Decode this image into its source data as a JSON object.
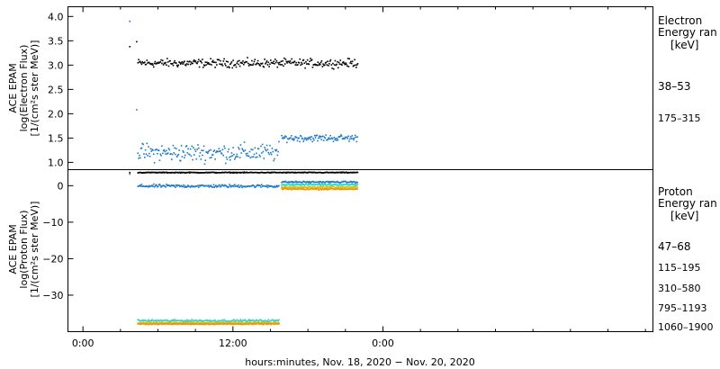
{
  "chart_data": [
    {
      "type": "scatter",
      "panel": "electron",
      "ylabel_lines": [
        "ACE EPAM",
        "log(Electron Flux)",
        "[1/(cm²s ster MeV)]"
      ],
      "ylim": [
        0.85,
        4.2
      ],
      "yticks": [
        1.0,
        1.5,
        2.0,
        2.5,
        3.0,
        3.5,
        4.0
      ],
      "ytick_labels": [
        "1.0",
        "1.5",
        "2.0",
        "2.5",
        "3.0",
        "3.5",
        "4.0"
      ],
      "legend_title_lines": [
        "Electron",
        "Energy ran"
      ],
      "legend_unit": "[keV]",
      "series": [
        {
          "name": "38–53",
          "color": "#000000",
          "outliers": [
            [
              3.75,
              3.38
            ],
            [
              4.3,
              3.48
            ]
          ],
          "segments": [
            [
              4.4,
              22.0,
              3.04,
              0.06
            ]
          ]
        },
        {
          "name": "175–315",
          "color": "#1e78c8",
          "outliers": [
            [
              3.75,
              3.9
            ],
            [
              4.3,
              2.08
            ]
          ],
          "segments": [
            [
              4.4,
              15.7,
              1.2,
              0.13
            ],
            [
              15.9,
              22.0,
              1.5,
              0.05
            ]
          ]
        }
      ]
    },
    {
      "type": "scatter",
      "panel": "proton",
      "ylabel_lines": [
        "ACE EPAM",
        "log(Proton Flux)",
        "[1/(cm²s ster MeV)]"
      ],
      "ylim": [
        -40,
        4.4
      ],
      "yticks": [
        0,
        -10,
        -20,
        -30
      ],
      "ytick_labels": [
        "0",
        "−10",
        "−20",
        "−30"
      ],
      "legend_title_lines": [
        "Proton",
        "Energy ran"
      ],
      "legend_unit": "[keV]",
      "series": [
        {
          "name": "47–68",
          "color": "#000000",
          "outliers": [
            [
              3.75,
              3.6
            ]
          ],
          "segments": [
            [
              4.4,
              22.0,
              3.6,
              0.08
            ]
          ]
        },
        {
          "name": "115–195",
          "color": "#1e78c8",
          "outliers": [
            [
              3.75,
              3.2
            ]
          ],
          "segments": [
            [
              4.4,
              15.7,
              -0.1,
              0.3
            ],
            [
              15.9,
              22.0,
              1.0,
              0.15
            ]
          ]
        },
        {
          "name": "310–580",
          "color": "#30d0d0",
          "outliers": [],
          "segments": [
            [
              4.4,
              15.7,
              -37.0,
              0.2
            ],
            [
              15.9,
              22.0,
              0.3,
              0.15
            ]
          ]
        },
        {
          "name": "795–1193",
          "color": "#c8c800",
          "outliers": [],
          "segments": [
            [
              4.4,
              15.7,
              -37.6,
              0.15
            ],
            [
              15.9,
              22.0,
              -0.4,
              0.15
            ]
          ]
        },
        {
          "name": "1060–1900",
          "color": "#ff8c00",
          "outliers": [],
          "segments": [
            [
              4.4,
              15.7,
              -37.9,
              0.1
            ],
            [
              15.9,
              22.0,
              -0.9,
              0.15
            ]
          ]
        }
      ]
    }
  ],
  "x_axis": {
    "range_hours": [
      -1.2,
      45.6
    ],
    "major_ticks": [
      0,
      12,
      24
    ],
    "minor_ticks": [
      3,
      6,
      9,
      15,
      18,
      21,
      27,
      30,
      33,
      36,
      39,
      42,
      45
    ],
    "tick_labels": [
      "0:00",
      "12:00",
      "0:00"
    ],
    "label": "hours:minutes, Nov. 18, 2020 − Nov. 20, 2020"
  }
}
